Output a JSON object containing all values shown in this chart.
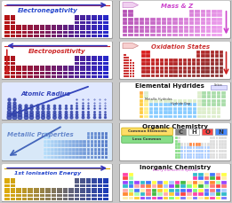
{
  "bg_color": "#c8c8c8",
  "panels": [
    {
      "label": "Electronegativity",
      "lcolor": "#2244cc",
      "lstyle": "italic",
      "content": "redblue_bars",
      "arrow": "right_top",
      "bg": "#ffffff",
      "arrow_color": "#3333bb"
    },
    {
      "label": "Mass & Z",
      "lcolor": "#cc44cc",
      "lstyle": "italic",
      "content": "pink_table",
      "arrow": "arrow_left_top_down",
      "bg": "#ffffff",
      "arrow_color": "#cc44cc"
    },
    {
      "label": "Electropositivity",
      "lcolor": "#cc2222",
      "lstyle": "italic",
      "content": "redblue_bars2",
      "arrow": "left_top",
      "bg": "#ffffff",
      "arrow_color": "#3333bb"
    },
    {
      "label": "Oxidation States",
      "lcolor": "#cc3333",
      "lstyle": "italic",
      "content": "red_table",
      "arrow": "arrow_right_down",
      "bg": "#ffffff",
      "arrow_color": "#cc2222"
    },
    {
      "label": "Atomic Radius",
      "lcolor": "#3344bb",
      "lstyle": "italic",
      "content": "dots",
      "arrow": "diagonal_down",
      "bg": "#e0e8ff",
      "arrow_color": "#3344bb"
    },
    {
      "label": "Elemental Hydrides",
      "lcolor": "#111111",
      "lstyle": "normal",
      "content": "hydrides",
      "arrow": "none",
      "bg": "#ffffff",
      "arrow_color": ""
    },
    {
      "label": "Metallic Properties",
      "lcolor": "#6688cc",
      "lstyle": "italic",
      "content": "blue_table",
      "arrow": "diagonal_down",
      "bg": "#d8e8f8",
      "arrow_color": "#4466bb"
    },
    {
      "label": "Organic Chemistry",
      "lcolor": "#111111",
      "lstyle": "normal",
      "content": "organic",
      "arrow": "none",
      "bg": "#ffffff",
      "arrow_color": ""
    },
    {
      "label": "1st Ionisation Energy",
      "lcolor": "#2244cc",
      "lstyle": "italic",
      "content": "yellow_bars",
      "arrow": "right_top",
      "bg": "#ffffff",
      "arrow_color": "#3333bb"
    },
    {
      "label": "Inorganic Chemistry",
      "lcolor": "#111111",
      "lstyle": "normal",
      "content": "multicolor",
      "arrow": "none",
      "bg": "#ffffff",
      "arrow_color": ""
    }
  ]
}
